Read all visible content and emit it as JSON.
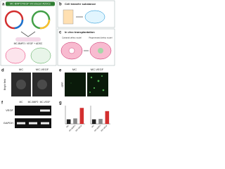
{
  "panels": {
    "a": {
      "label": "a",
      "title": "MC-BMP2/VEGF introduced ADSCs",
      "note": "MC-BMP2 / VEGF + ADSC"
    },
    "b": {
      "label": "b",
      "title": "Cell transfer substance"
    },
    "c": {
      "label": "c",
      "title": "In vivo transplantation",
      "left": "Calvarial defect model",
      "right": "Regenerated defect model"
    },
    "d": {
      "label": "d",
      "row_label": "Bright field",
      "columns": [
        "MC",
        "MC-VEGF"
      ]
    },
    "e": {
      "label": "e",
      "columns": [
        "MC",
        "MC-VEGF"
      ],
      "row_label": "GFP"
    },
    "f": {
      "label": "f",
      "rows": [
        "VEGF",
        "GAPDH"
      ],
      "columns": [
        "MC",
        "MC-BMP2",
        "MC-VEGF"
      ]
    },
    "g": {
      "label": "g",
      "charts": [
        {
          "type": "bar",
          "categories": [
            "MC",
            "MC-BMP2",
            "MC-VEGF"
          ],
          "values": [
            1,
            1.2,
            3.5
          ],
          "colors": [
            "#222222",
            "#888888",
            "#d32f2f"
          ],
          "ylim": [
            0,
            4
          ]
        },
        {
          "type": "bar",
          "categories": [
            "MC",
            "MC-BMP2",
            "MC-VEGF"
          ],
          "values": [
            1,
            1.1,
            2.8
          ],
          "colors": [
            "#222222",
            "#888888",
            "#d32f2f"
          ],
          "ylim": [
            0,
            4
          ]
        }
      ]
    }
  }
}
